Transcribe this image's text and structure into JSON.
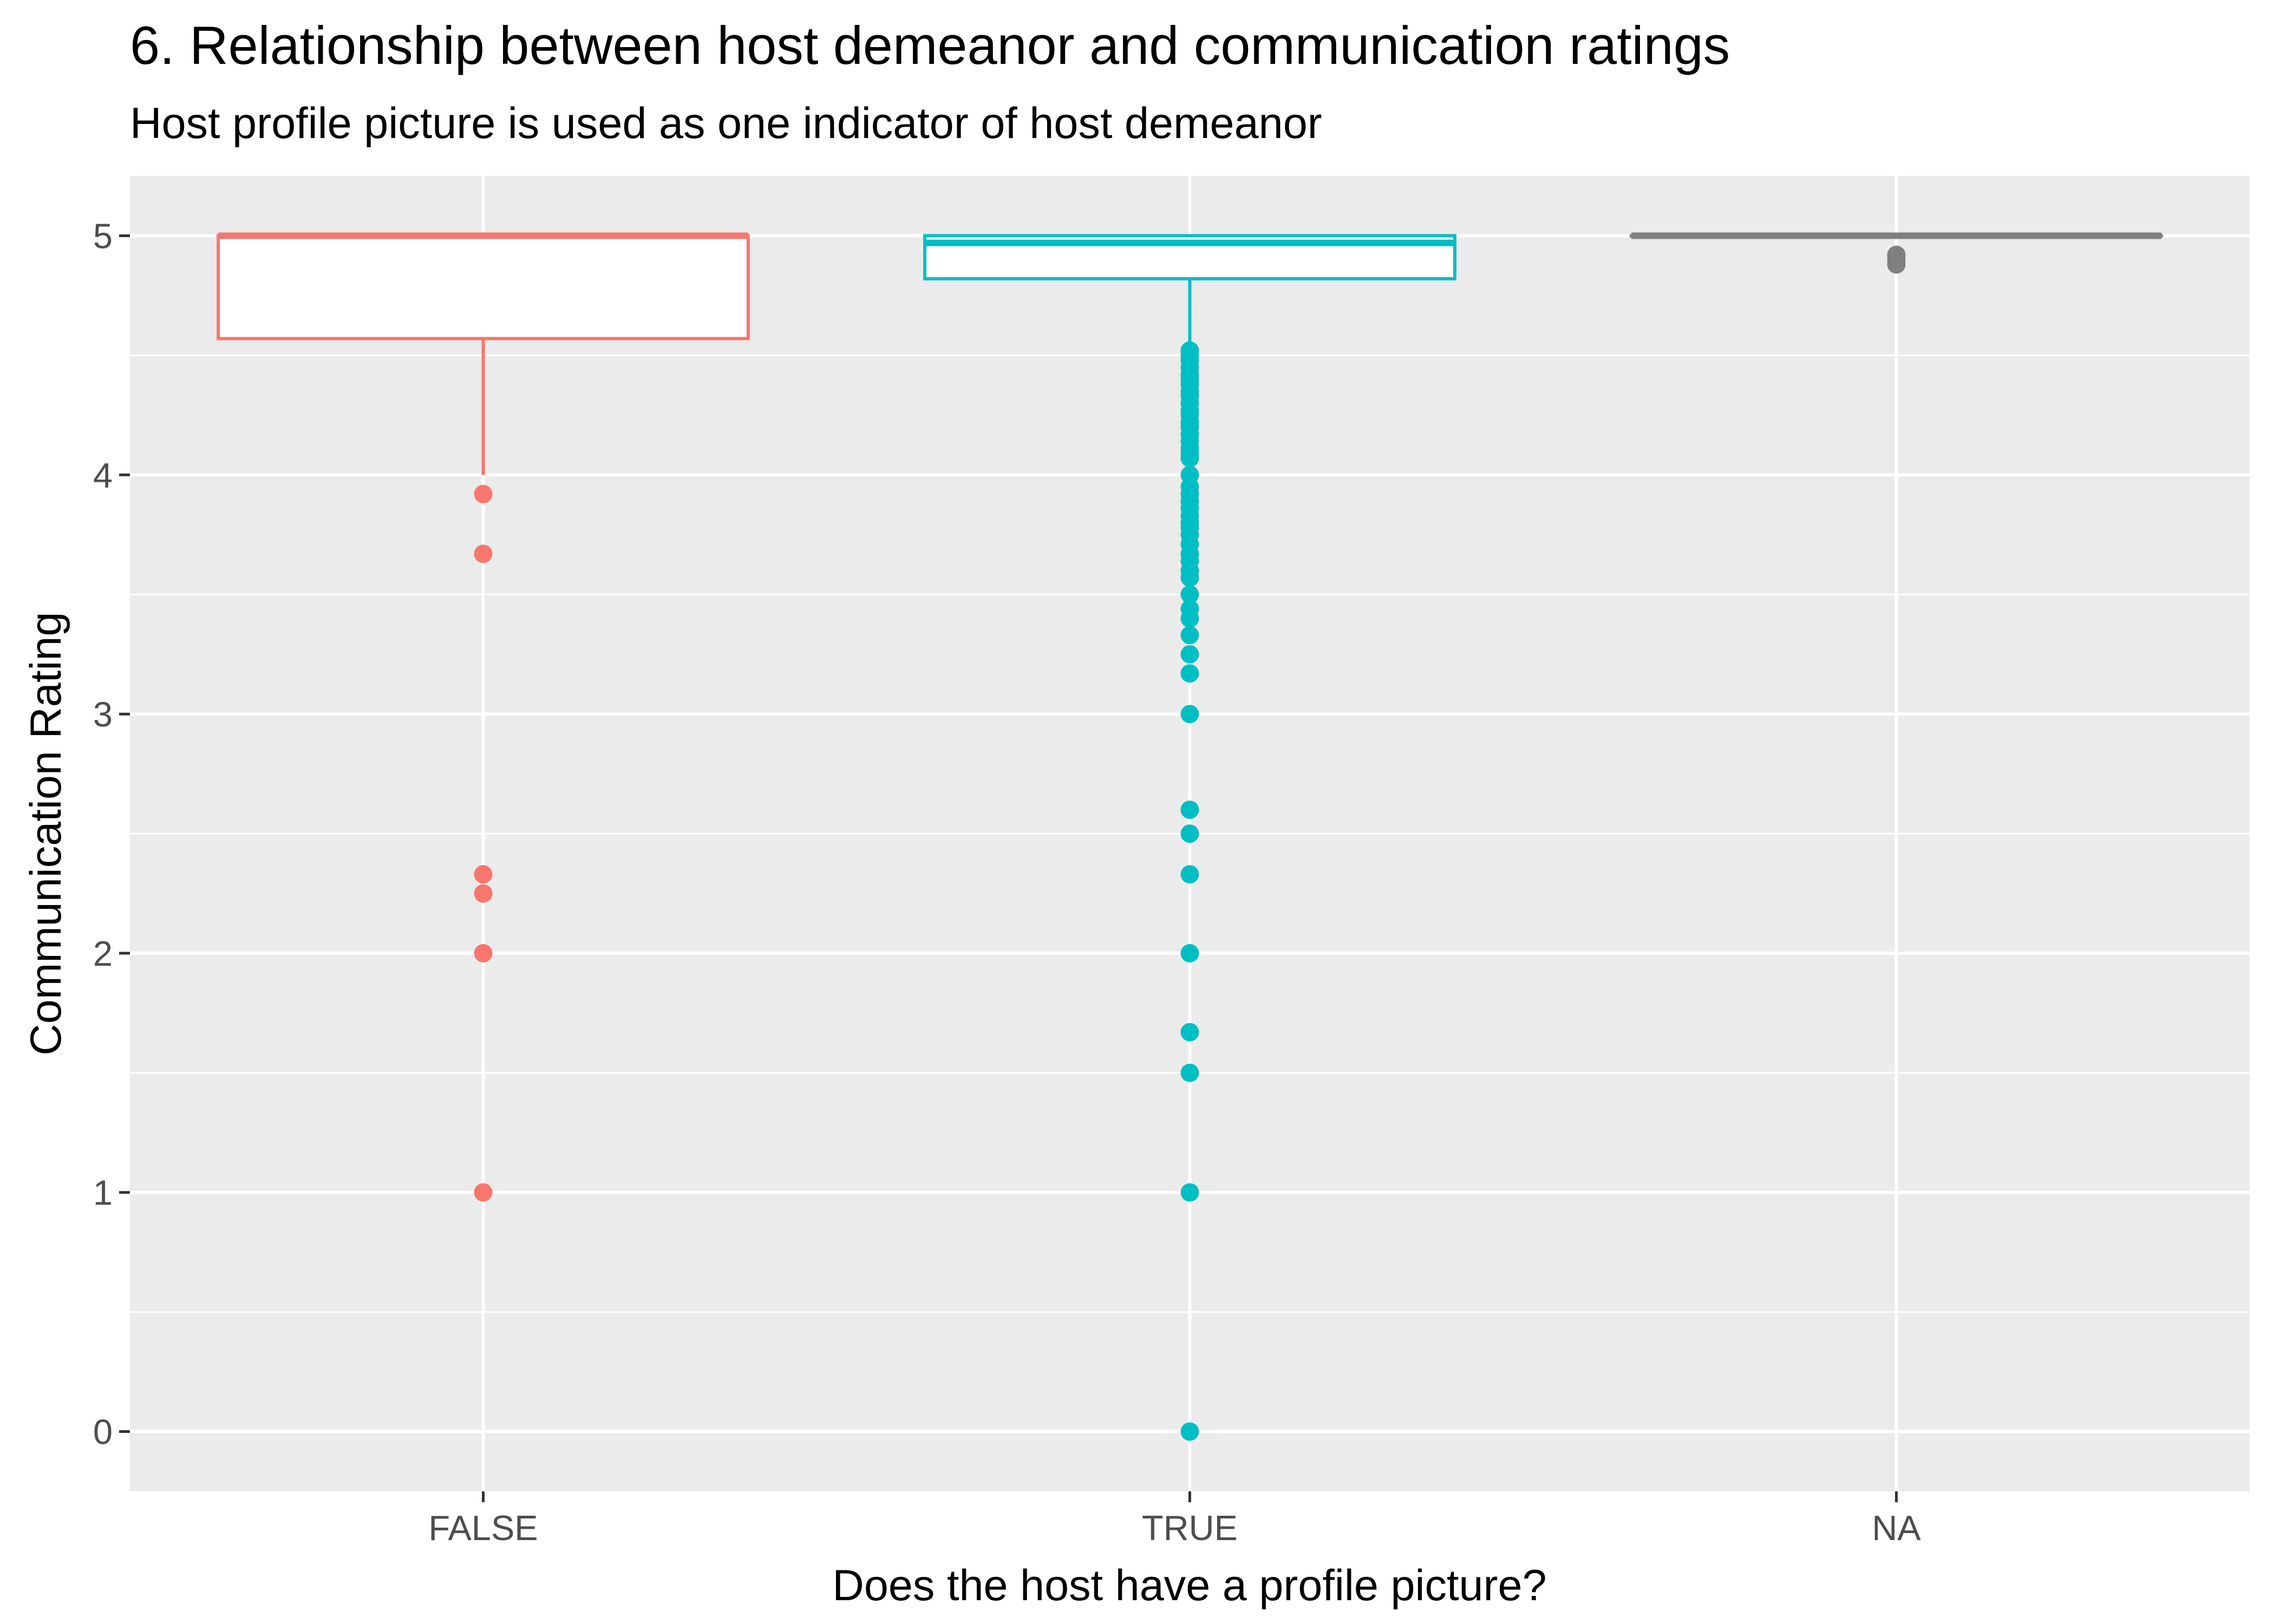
{
  "chart_data": {
    "type": "box",
    "title": "6. Relationship between host demeanor and communication ratings",
    "subtitle": "Host profile picture is used as one indicator of host demeanor",
    "xlabel": "Does the host have a profile picture?",
    "ylabel": "Communication Rating",
    "categories": [
      "FALSE",
      "TRUE",
      "NA"
    ],
    "ylim": [
      -0.25,
      5.25
    ],
    "yticks": [
      0,
      1,
      2,
      3,
      4,
      5
    ],
    "grid": true,
    "legend": "none",
    "colors": {
      "FALSE": "#F8766D",
      "TRUE": "#00BFC4",
      "NA": "#7F7F7F",
      "panel": "#EBEBEB",
      "grid": "#FFFFFF"
    },
    "series": [
      {
        "category": "FALSE",
        "box": {
          "lower_whisker": 4.0,
          "q1": 4.57,
          "median": 5.0,
          "q3": 5.0,
          "upper_whisker": 5.0
        },
        "outliers": [
          3.92,
          3.67,
          2.33,
          2.25,
          2.0,
          1.0
        ]
      },
      {
        "category": "TRUE",
        "box": {
          "lower_whisker": 4.52,
          "q1": 4.82,
          "median": 4.97,
          "q3": 5.0,
          "upper_whisker": 5.0
        },
        "outliers": [
          4.52,
          4.5,
          4.48,
          4.45,
          4.42,
          4.4,
          4.38,
          4.35,
          4.33,
          4.3,
          4.27,
          4.25,
          4.22,
          4.2,
          4.17,
          4.14,
          4.11,
          4.09,
          4.07,
          4.0,
          3.95,
          3.92,
          3.89,
          3.86,
          3.83,
          3.8,
          3.78,
          3.75,
          3.71,
          3.67,
          3.64,
          3.6,
          3.57,
          3.5,
          3.44,
          3.4,
          3.33,
          3.25,
          3.17,
          3.0,
          2.6,
          2.5,
          2.33,
          2.0,
          1.67,
          1.5,
          1.0,
          0.0
        ]
      },
      {
        "category": "NA",
        "box": {
          "lower_whisker": 5.0,
          "q1": 5.0,
          "median": 5.0,
          "q3": 5.0,
          "upper_whisker": 5.0
        },
        "outliers": [
          4.92,
          4.9,
          4.88
        ]
      }
    ]
  }
}
